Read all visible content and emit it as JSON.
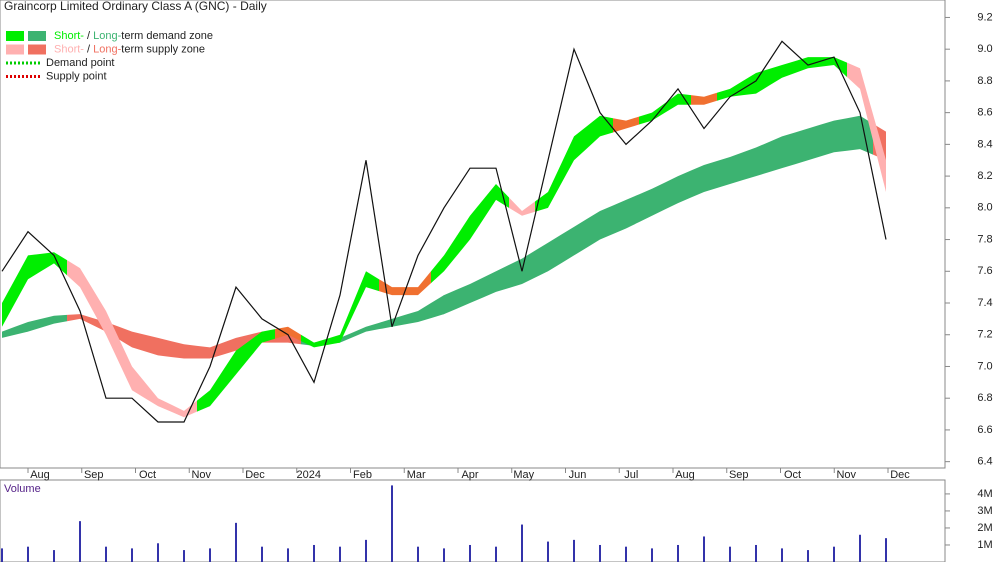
{
  "chart_data": {
    "type": "zones",
    "title": "Graincorp Limited Ordinary Class A (GNC) - Daily",
    "legend": [
      {
        "parts": [
          "Short-",
          " / ",
          "Long-",
          "term demand zone"
        ],
        "colors": [
          "#00ee00",
          "#3cb371"
        ]
      },
      {
        "parts": [
          "Short-",
          " / ",
          "Long-",
          "term supply zone"
        ],
        "colors": [
          "#ffb0b0",
          "#f07060"
        ]
      },
      {
        "parts": [
          "Demand point"
        ],
        "colors": [
          "#00cc00"
        ]
      },
      {
        "parts": [
          "Supply point"
        ],
        "colors": [
          "#dd0000"
        ]
      }
    ],
    "categories": [
      "Aug",
      "Sep",
      "Oct",
      "Nov",
      "Dec",
      "2024",
      "Feb",
      "Mar",
      "Apr",
      "May",
      "Jun",
      "Jul",
      "Aug",
      "Sep",
      "Oct",
      "Nov",
      "Dec"
    ],
    "ylim": [
      6.36,
      9.31
    ],
    "yticks": [
      {
        "value": 9,
        "label": "9.0"
      },
      9.2,
      8.8,
      8.6,
      8.4,
      8.2,
      {
        "value": 8,
        "label": "8.0"
      },
      7.8,
      7.6,
      7.4,
      7.2,
      {
        "value": 7,
        "label": "7.0"
      },
      6.8,
      6.6,
      6.4
    ],
    "price": {
      "color": "#111111",
      "values": [
        7.6,
        7.85,
        7.7,
        7.35,
        6.8,
        6.8,
        6.65,
        6.65,
        7.0,
        7.5,
        7.3,
        7.2,
        6.9,
        7.45,
        8.3,
        7.25,
        7.7,
        8.0,
        8.25,
        8.25,
        7.6,
        8.3,
        9.0,
        8.6,
        8.4,
        8.55,
        8.75,
        8.5,
        8.7,
        8.8,
        9.05,
        8.9,
        8.95,
        8.6,
        7.8
      ]
    },
    "zones": [
      {
        "upper": [
          7.22,
          7.28,
          7.32,
          7.33,
          7.28,
          7.22,
          7.18,
          7.14,
          7.12,
          7.18,
          7.22,
          7.2,
          7.15,
          7.18,
          7.25,
          7.3,
          7.35,
          7.45,
          7.52,
          7.6,
          7.68,
          7.78,
          7.88,
          7.98,
          8.05,
          8.12,
          8.2,
          8.27,
          8.32,
          8.38,
          8.45,
          8.5,
          8.55,
          8.58,
          8.48
        ],
        "lower": [
          7.18,
          7.22,
          7.27,
          7.3,
          7.22,
          7.12,
          7.07,
          7.05,
          7.05,
          7.1,
          7.15,
          7.15,
          7.13,
          7.15,
          7.22,
          7.25,
          7.28,
          7.33,
          7.4,
          7.47,
          7.52,
          7.6,
          7.7,
          7.8,
          7.87,
          7.95,
          8.03,
          8.1,
          8.15,
          8.2,
          8.25,
          8.3,
          8.35,
          8.37,
          8.3
        ],
        "colors": [
          "#3cb371",
          "#3cb371",
          "#3cb371",
          "#f07060",
          "#f07060",
          "#f07060",
          "#f07060",
          "#f07060",
          "#f07060",
          "#f07060",
          "#f07060",
          "#f07060",
          "#3cb371",
          "#3cb371",
          "#3cb371",
          "#3cb371",
          "#3cb371",
          "#3cb371",
          "#3cb371",
          "#3cb371",
          "#3cb371",
          "#3cb371",
          "#3cb371",
          "#3cb371",
          "#3cb371",
          "#3cb371",
          "#3cb371",
          "#3cb371",
          "#3cb371",
          "#3cb371",
          "#3cb371",
          "#3cb371",
          "#3cb371",
          "#3cb371",
          "#f07060"
        ]
      },
      {
        "upper": [
          7.4,
          7.7,
          7.72,
          7.62,
          7.35,
          7.0,
          6.8,
          6.72,
          6.85,
          7.1,
          7.22,
          7.25,
          7.15,
          7.2,
          7.6,
          7.5,
          7.5,
          7.7,
          7.95,
          8.15,
          7.98,
          8.1,
          8.45,
          8.58,
          8.55,
          8.6,
          8.72,
          8.7,
          8.75,
          8.85,
          8.9,
          8.95,
          8.95,
          8.88,
          8.3
        ],
        "lower": [
          7.25,
          7.55,
          7.65,
          7.5,
          7.2,
          6.85,
          6.75,
          6.68,
          6.75,
          6.95,
          7.15,
          7.2,
          7.12,
          7.15,
          7.5,
          7.45,
          7.45,
          7.6,
          7.8,
          8.05,
          7.95,
          8.0,
          8.3,
          8.45,
          8.5,
          8.55,
          8.65,
          8.65,
          8.7,
          8.72,
          8.82,
          8.88,
          8.9,
          8.75,
          8.1
        ],
        "colors": [
          "#00ee00",
          "#00ee00",
          "#00ee00",
          "#ffb0b0",
          "#ffb0b0",
          "#ffb0b0",
          "#ffb0b0",
          "#ffb0b0",
          "#00ee00",
          "#00ee00",
          "#00ee00",
          "#f07030",
          "#00ee00",
          "#00ee00",
          "#00ee00",
          "#f07030",
          "#f07030",
          "#00ee00",
          "#00ee00",
          "#00ee00",
          "#ffb0b0",
          "#00ee00",
          "#00ee00",
          "#00ee00",
          "#f07030",
          "#00ee00",
          "#00ee00",
          "#f07030",
          "#00ee00",
          "#00ee00",
          "#00ee00",
          "#00ee00",
          "#00ee00",
          "#ffb0b0",
          "#ffb0b0"
        ]
      }
    ],
    "volume": {
      "label": "Volume",
      "color": "#3333aa",
      "values": [
        800000,
        900000,
        700000,
        2400000,
        900000,
        800000,
        1100000,
        700000,
        800000,
        2300000,
        900000,
        800000,
        1000000,
        900000,
        1300000,
        4500000,
        900000,
        800000,
        1000000,
        900000,
        2200000,
        1200000,
        1300000,
        1000000,
        900000,
        800000,
        1000000,
        1500000,
        900000,
        1000000,
        800000,
        700000,
        900000,
        1600000,
        1400000
      ],
      "ylim": [
        0,
        4700000
      ],
      "yticks": [
        {
          "value": 1000000,
          "label": "1M"
        },
        {
          "value": 2000000,
          "label": "2M"
        },
        {
          "value": 3000000,
          "label": "3M"
        },
        {
          "value": 4000000,
          "label": "4M"
        }
      ]
    }
  }
}
